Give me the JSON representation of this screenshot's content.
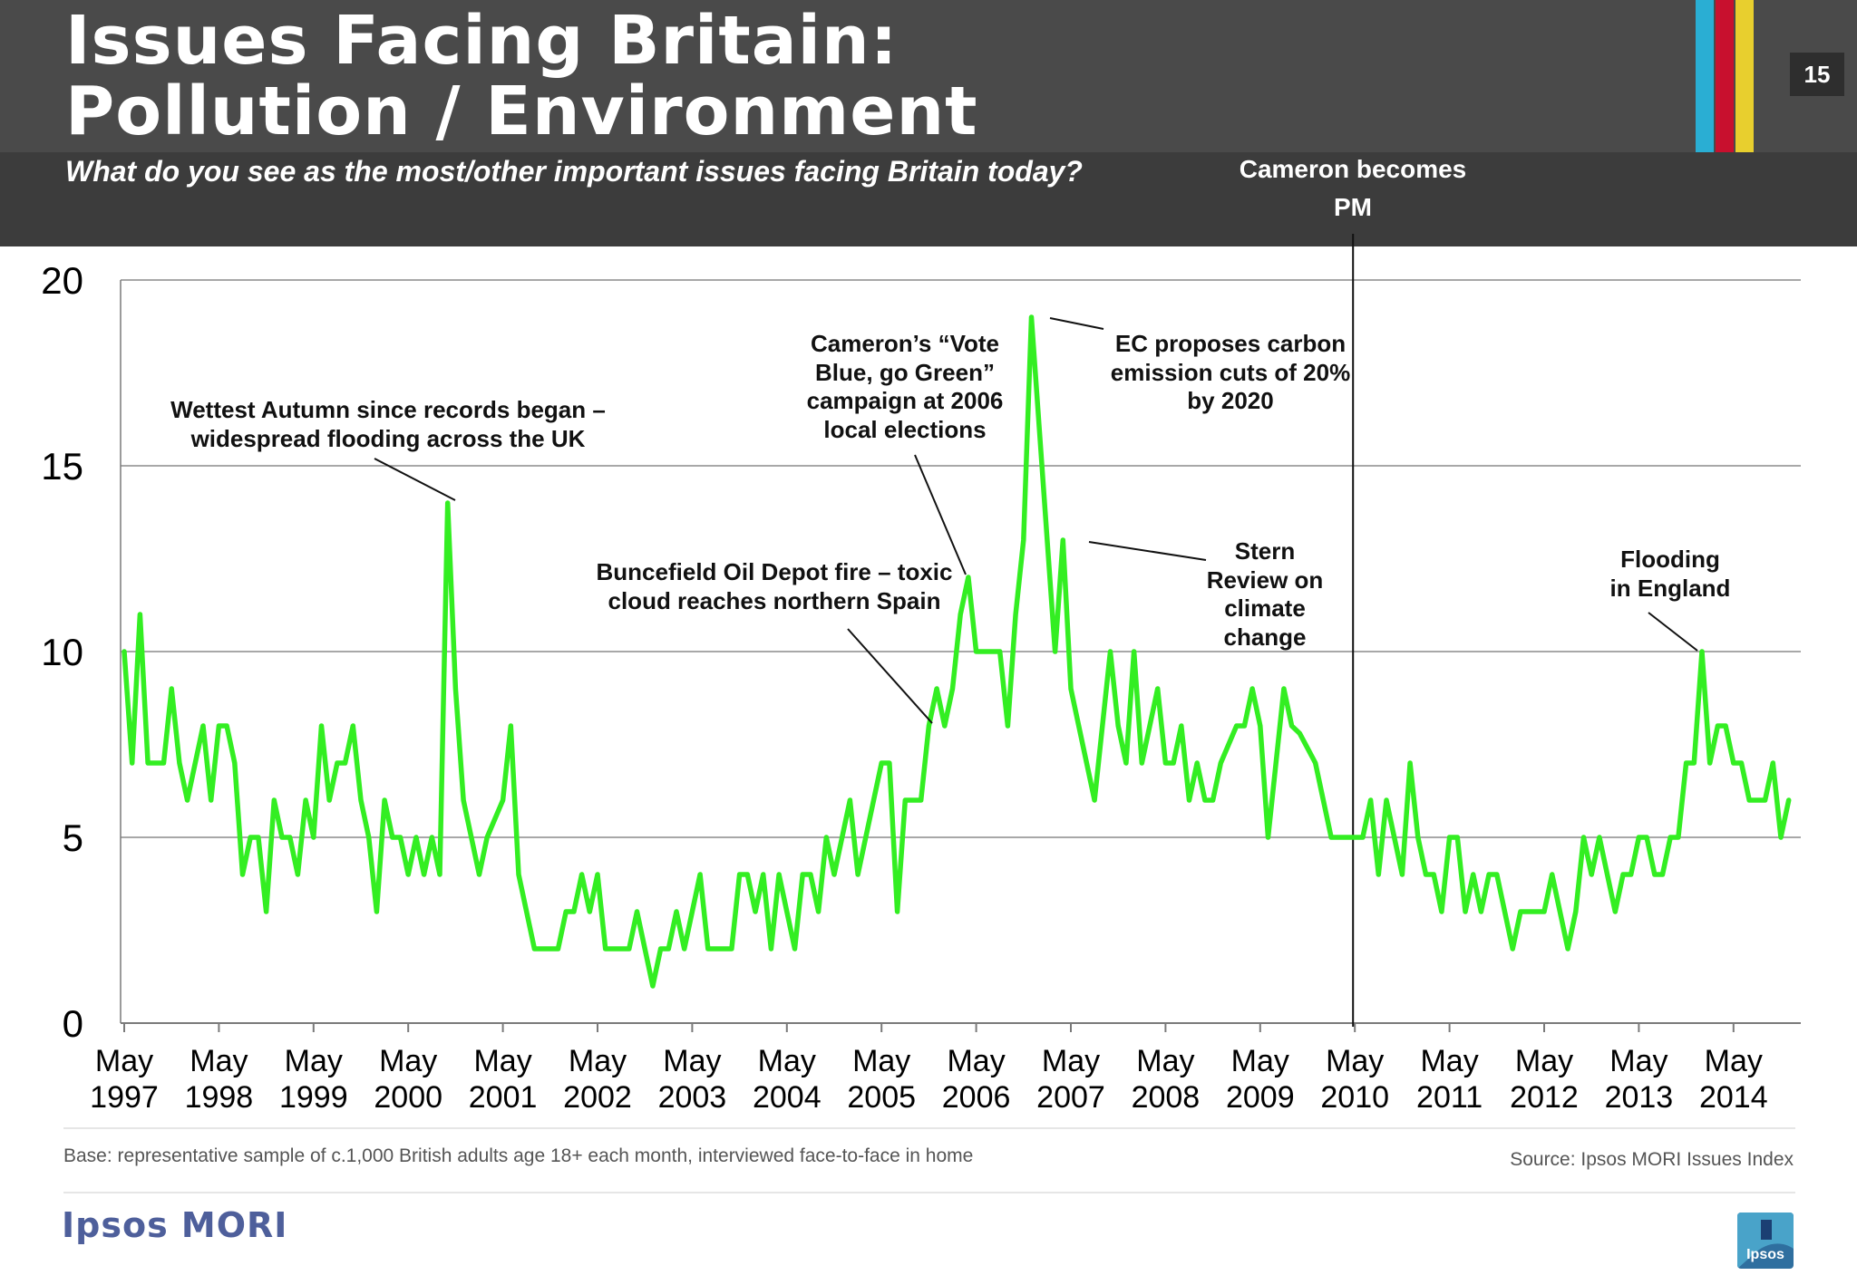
{
  "header": {
    "title": "Issues Facing Britain:\nPollution / Environment",
    "subtitle": "What do you see as the most/other important issues facing Britain today?",
    "page_number": "15",
    "stripe_colors": [
      "#2aaed3",
      "#c8102e",
      "#e8cf2e"
    ]
  },
  "chart_data": {
    "type": "line",
    "title": "",
    "xlabel": "",
    "ylabel": "",
    "ylim": [
      0,
      20
    ],
    "y_ticks": [
      0,
      5,
      10,
      15,
      20
    ],
    "x_tick_labels": [
      [
        "May",
        "1997"
      ],
      [
        "May",
        "1998"
      ],
      [
        "May",
        "1999"
      ],
      [
        "May",
        "2000"
      ],
      [
        "May",
        "2001"
      ],
      [
        "May",
        "2002"
      ],
      [
        "May",
        "2003"
      ],
      [
        "May",
        "2004"
      ],
      [
        "May",
        "2005"
      ],
      [
        "May",
        "2006"
      ],
      [
        "May",
        "2007"
      ],
      [
        "May",
        "2008"
      ],
      [
        "May",
        "2009"
      ],
      [
        "May",
        "2010"
      ],
      [
        "May",
        "2011"
      ],
      [
        "May",
        "2012"
      ],
      [
        "May",
        "2013"
      ],
      [
        "May",
        "2014"
      ]
    ],
    "grid": "horizontal",
    "series_color": "#33ee22",
    "series": [
      {
        "values": [
          10,
          7,
          11,
          7,
          7,
          7,
          9,
          7,
          6,
          7,
          8,
          6,
          8,
          8,
          7,
          4,
          5,
          5,
          3,
          6,
          5,
          5,
          4,
          6,
          5,
          8,
          6,
          7,
          7,
          8,
          6,
          5,
          3,
          6,
          5,
          5,
          4,
          5,
          4,
          5,
          4,
          14,
          9,
          6,
          5,
          4,
          5,
          5.5,
          6,
          8,
          4,
          3,
          2,
          2,
          2,
          2,
          3,
          3,
          4,
          3,
          4,
          2,
          2,
          2,
          2,
          3,
          2,
          1,
          2,
          2,
          3,
          2,
          3,
          4,
          2,
          2,
          2,
          2,
          4,
          4,
          3,
          4,
          2,
          4,
          3,
          2,
          4,
          4,
          3,
          5,
          4,
          5,
          6,
          4,
          5,
          6,
          7,
          7,
          3,
          6,
          6,
          6,
          8,
          9,
          8,
          9,
          11,
          12,
          10,
          10,
          10,
          10,
          8,
          11,
          13,
          19,
          16,
          13,
          10,
          13,
          9,
          8,
          7,
          6,
          8,
          10,
          8,
          7,
          10,
          7,
          8,
          9,
          7,
          7,
          8,
          6,
          7,
          6,
          6,
          7,
          7.5,
          8,
          8,
          9,
          8,
          5,
          7,
          9,
          8,
          7.8,
          7.4,
          7,
          6,
          5,
          5,
          5,
          5,
          5,
          6,
          4,
          6,
          5,
          4,
          7,
          5,
          4,
          4,
          3,
          5,
          5,
          3,
          4,
          3,
          4,
          4,
          3,
          2,
          3,
          3,
          3,
          3,
          4,
          3,
          2,
          3,
          5,
          4,
          5,
          4,
          3,
          4,
          4,
          5,
          5,
          4,
          4,
          5,
          5,
          7,
          7,
          10,
          7,
          8,
          8,
          7,
          7,
          6,
          6,
          6,
          7,
          5,
          6
        ]
      }
    ],
    "annotations": [
      {
        "lines": [
          "Wettest Autumn since records began –",
          "widespread flooding across the UK"
        ]
      },
      {
        "lines": [
          "Buncefield Oil Depot fire – toxic",
          "cloud reaches northern Spain"
        ]
      },
      {
        "lines": [
          "Cameron’s “Vote",
          "Blue, go Green”",
          "campaign at 2006",
          "local elections"
        ]
      },
      {
        "lines": [
          "EC proposes carbon",
          "emission cuts of 20%",
          "by 2020"
        ]
      },
      {
        "lines": [
          "Stern",
          "Review on",
          "climate",
          "change"
        ]
      },
      {
        "lines": [
          "Flooding",
          "in England"
        ]
      }
    ],
    "marker": {
      "label_lines": [
        "Cameron becomes",
        "PM"
      ],
      "x_month_index": 156
    }
  },
  "footer": {
    "base_note": "Base: representative sample of c.1,000 British adults age 18+ each month, interviewed face-to-face in home",
    "source_note": "Source: Ipsos MORI Issues Index",
    "brand": "Ipsos MORI",
    "logo_text": "Ipsos",
    "brand_color": "#4e5f9b"
  }
}
